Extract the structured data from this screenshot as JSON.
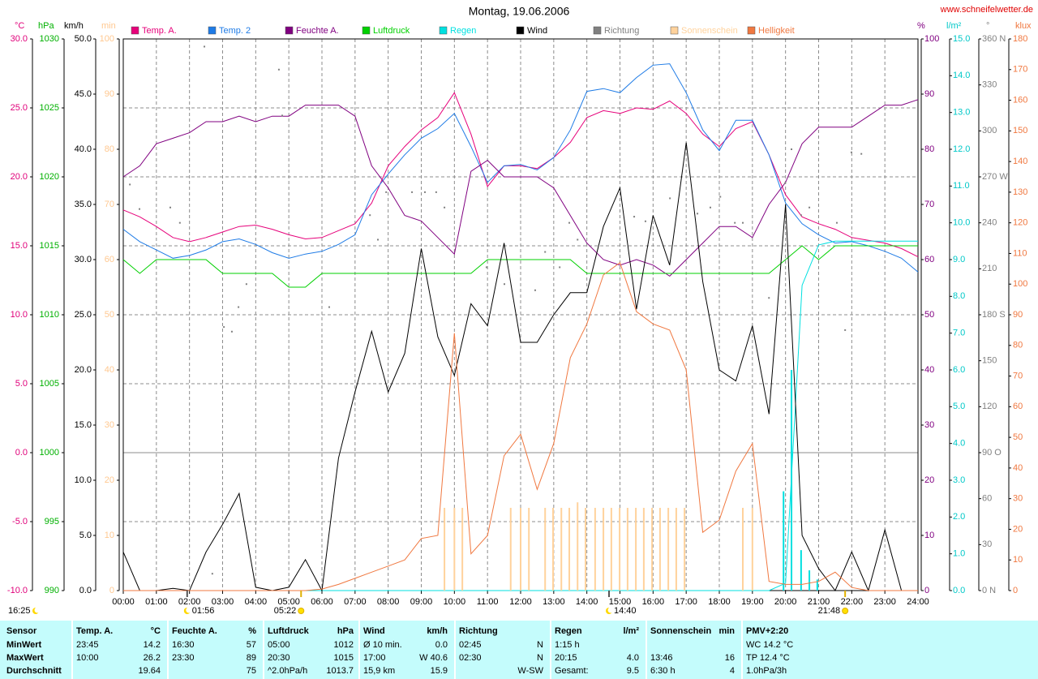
{
  "header": {
    "title": "Montag, 19.06.2006",
    "site": "www.schneifelwetter.de"
  },
  "chart_data": {
    "type": "line",
    "grid": true,
    "x": [
      0,
      0.5,
      1,
      1.5,
      2,
      2.5,
      3,
      3.5,
      4,
      4.5,
      5,
      5.5,
      6,
      6.5,
      7,
      7.5,
      8,
      8.5,
      9,
      9.5,
      10,
      10.5,
      11,
      11.5,
      12,
      12.5,
      13,
      13.5,
      14,
      14.5,
      15,
      15.5,
      16,
      16.5,
      17,
      17.5,
      18,
      18.5,
      19,
      19.5,
      20,
      20.5,
      21,
      21.5,
      22,
      22.5,
      23,
      23.5,
      24
    ],
    "xlim": [
      0,
      24
    ],
    "xticks": [
      {
        "value": 0,
        "label": "00:00"
      },
      {
        "value": 1,
        "label": "01:00"
      },
      {
        "value": 2,
        "label": "02:00"
      },
      {
        "value": 3,
        "label": "03:00"
      },
      {
        "value": 4,
        "label": "04:00"
      },
      {
        "value": 5,
        "label": "05:00"
      },
      {
        "value": 6,
        "label": "06:00"
      },
      {
        "value": 7,
        "label": "07:00"
      },
      {
        "value": 8,
        "label": "08:00"
      },
      {
        "value": 9,
        "label": "09:00"
      },
      {
        "value": 10,
        "label": "10:00"
      },
      {
        "value": 11,
        "label": "11:00"
      },
      {
        "value": 12,
        "label": "12:00"
      },
      {
        "value": 13,
        "label": "13:00"
      },
      {
        "value": 14,
        "label": "14:00"
      },
      {
        "value": 15,
        "label": "15:00"
      },
      {
        "value": 16,
        "label": "16:00"
      },
      {
        "value": 17,
        "label": "17:00"
      },
      {
        "value": 18,
        "label": "18:00"
      },
      {
        "value": 19,
        "label": "19:00"
      },
      {
        "value": 20,
        "label": "20:00"
      },
      {
        "value": 21,
        "label": "21:00"
      },
      {
        "value": 22,
        "label": "22:00"
      },
      {
        "value": 23,
        "label": "23:00"
      },
      {
        "value": 24,
        "label": "24:00"
      }
    ],
    "axes": [
      {
        "label": "°C",
        "color": "#e0007a",
        "side": "left",
        "grid": true,
        "ylim": [
          -10,
          30
        ],
        "yticks": [
          {
            "value": -10,
            "label": "-10.0"
          },
          {
            "value": -5,
            "label": "-5.0"
          },
          {
            "value": 0,
            "label": "0.0"
          },
          {
            "value": 5,
            "label": "5.0"
          },
          {
            "value": 10,
            "label": "10.0"
          },
          {
            "value": 15,
            "label": "15.0"
          },
          {
            "value": 20,
            "label": "20.0"
          },
          {
            "value": 25,
            "label": "25.0"
          },
          {
            "value": 30,
            "label": "30.0"
          }
        ]
      },
      {
        "label": "hPa",
        "color": "#00b000",
        "side": "left",
        "ylim": [
          990,
          1030
        ],
        "yticks": [
          990,
          995,
          1000,
          1005,
          1010,
          1015,
          1020,
          1025,
          1030
        ]
      },
      {
        "label": "km/h",
        "color": "#000000",
        "side": "left",
        "ylim": [
          0,
          50
        ],
        "yticks": [
          {
            "value": 0,
            "label": "0.0"
          },
          {
            "value": 5,
            "label": "5.0"
          },
          {
            "value": 10,
            "label": "10.0"
          },
          {
            "value": 15,
            "label": "15.0"
          },
          {
            "value": 20,
            "label": "20.0"
          },
          {
            "value": 25,
            "label": "25.0"
          },
          {
            "value": 30,
            "label": "30.0"
          },
          {
            "value": 35,
            "label": "35.0"
          },
          {
            "value": 40,
            "label": "40.0"
          },
          {
            "value": 45,
            "label": "45.0"
          },
          {
            "value": 50,
            "label": "50.0"
          }
        ]
      },
      {
        "label": "min",
        "color": "#ffc890",
        "side": "left",
        "ylim": [
          0,
          100
        ],
        "yticks": [
          0,
          10,
          20,
          30,
          40,
          50,
          60,
          70,
          80,
          90,
          100
        ]
      },
      {
        "label": "%",
        "color": "#800080",
        "side": "right",
        "ylim": [
          0,
          100
        ],
        "yticks": [
          0,
          10,
          20,
          30,
          40,
          50,
          60,
          70,
          80,
          90,
          100
        ]
      },
      {
        "label": "l/m²",
        "color": "#00c8c8",
        "side": "right",
        "ylim": [
          0,
          15
        ],
        "yticks": [
          {
            "value": 0,
            "label": "0.0"
          },
          {
            "value": 1,
            "label": "1.0"
          },
          {
            "value": 2,
            "label": "2.0"
          },
          {
            "value": 3,
            "label": "3.0"
          },
          {
            "value": 4,
            "label": "4.0"
          },
          {
            "value": 5,
            "label": "5.0"
          },
          {
            "value": 6,
            "label": "6.0"
          },
          {
            "value": 7,
            "label": "7.0"
          },
          {
            "value": 8,
            "label": "8.0"
          },
          {
            "value": 9,
            "label": "9.0"
          },
          {
            "value": 10,
            "label": "10.0"
          },
          {
            "value": 11,
            "label": "11.0"
          },
          {
            "value": 12,
            "label": "12.0"
          },
          {
            "value": 13,
            "label": "13.0"
          },
          {
            "value": 14,
            "label": "14.0"
          },
          {
            "value": 15,
            "label": "15.0"
          }
        ]
      },
      {
        "label": "°",
        "color": "#808080",
        "side": "right",
        "ylim": [
          0,
          360
        ],
        "yticks": [
          {
            "value": 0,
            "label": "0 N"
          },
          30,
          60,
          {
            "value": 90,
            "label": "90 O"
          },
          120,
          150,
          {
            "value": 180,
            "label": "180 S"
          },
          210,
          240,
          {
            "value": 270,
            "label": "270 W"
          },
          300,
          330,
          {
            "value": 360,
            "label": "360 N"
          }
        ]
      },
      {
        "label": "klux",
        "color": "#f07840",
        "side": "right",
        "ylim": [
          0,
          180
        ],
        "yticks": [
          0,
          10,
          20,
          30,
          40,
          50,
          60,
          70,
          80,
          90,
          100,
          110,
          120,
          130,
          140,
          150,
          160,
          170,
          180
        ]
      }
    ],
    "series": [
      {
        "name": "Temp. A.",
        "color": "#e6007a",
        "axis": "°C",
        "values": [
          17.6,
          17.1,
          16.4,
          15.6,
          15.3,
          15.6,
          16.0,
          16.4,
          16.5,
          16.2,
          15.8,
          15.5,
          15.6,
          16.1,
          16.6,
          18.1,
          20.8,
          22.2,
          23.4,
          24.3,
          26.1,
          23.1,
          19.3,
          20.8,
          20.8,
          20.6,
          21.4,
          22.5,
          24.3,
          24.8,
          24.6,
          25.0,
          24.9,
          25.5,
          24.6,
          23.1,
          22.2,
          23.5,
          24.0,
          21.6,
          18.7,
          17.1,
          16.6,
          16.2,
          15.6,
          15.4,
          15.2,
          14.8,
          14.2
        ]
      },
      {
        "name": "Temp. 2",
        "color": "#1e7be6",
        "axis": "°C",
        "values": [
          16.2,
          15.3,
          14.7,
          14.1,
          14.3,
          14.7,
          15.3,
          15.5,
          15.1,
          14.5,
          14.1,
          14.4,
          14.6,
          15.1,
          15.8,
          18.7,
          20.2,
          21.6,
          22.8,
          23.5,
          24.6,
          22.2,
          19.6,
          20.8,
          20.9,
          20.5,
          21.4,
          23.4,
          26.2,
          26.4,
          26.1,
          27.2,
          28.1,
          28.2,
          26.1,
          23.4,
          21.9,
          24.1,
          24.1,
          21.6,
          18.1,
          16.6,
          15.8,
          15.2,
          15.3,
          15.0,
          14.6,
          14.1,
          13.1
        ]
      },
      {
        "name": "Feuchte A.",
        "color": "#800080",
        "axis": "%",
        "values": [
          75,
          77,
          81,
          82,
          83,
          85,
          85,
          86,
          85,
          86,
          86,
          88,
          88,
          88,
          86,
          77,
          73,
          68,
          67,
          64,
          61,
          76,
          78,
          75,
          75,
          75,
          73,
          68,
          63,
          60,
          59,
          60,
          59,
          57,
          60,
          63,
          66,
          66,
          64,
          70,
          74,
          81,
          84,
          84,
          84,
          86,
          88,
          88,
          89
        ]
      },
      {
        "name": "Luftdruck",
        "color": "#00d000",
        "axis": "hPa",
        "values": [
          1014,
          1013,
          1014,
          1014,
          1014,
          1014,
          1013,
          1013,
          1013,
          1013,
          1012,
          1012,
          1013,
          1013,
          1013,
          1013,
          1013,
          1013,
          1013,
          1013,
          1013,
          1013,
          1014,
          1014,
          1014,
          1014,
          1014,
          1014,
          1013,
          1013,
          1013,
          1013,
          1013,
          1013,
          1013,
          1013,
          1013,
          1013,
          1013,
          1013,
          1014,
          1015,
          1014,
          1015,
          1015,
          1015,
          1015,
          1015,
          1015
        ]
      },
      {
        "name": "Regen",
        "color": "#00e0e0",
        "axis": "l/m²",
        "values": [
          0,
          0,
          0,
          0,
          0,
          0,
          0,
          0,
          0,
          0,
          0,
          0,
          0,
          0,
          0,
          0,
          0,
          0,
          0,
          0,
          0,
          0,
          0,
          0,
          0,
          0,
          0,
          0,
          0,
          0,
          0,
          0,
          0,
          0,
          0,
          0,
          0,
          0,
          0,
          0,
          0.2,
          8.3,
          9.4,
          9.5,
          9.5,
          9.5,
          9.5,
          9.5,
          9.5
        ],
        "bars": {
          "x": [
            19.94,
            20.18,
            20.47,
            20.72,
            20.96
          ],
          "values": [
            2.7,
            6.0,
            1.1,
            0.55,
            0.3
          ]
        }
      },
      {
        "name": "Wind",
        "color": "#000000",
        "axis": "km/h",
        "values": [
          3.5,
          0,
          0,
          0.2,
          0,
          3.5,
          6,
          8.8,
          0.3,
          0,
          0.3,
          2.8,
          0,
          12,
          18,
          23.5,
          18,
          21.5,
          31,
          23,
          19.5,
          26,
          24,
          31.5,
          22.5,
          22.5,
          25,
          27,
          27,
          33,
          36.5,
          25.5,
          34,
          29.5,
          40.6,
          28,
          20,
          19,
          24,
          16,
          35,
          5,
          2,
          0,
          3.5,
          0,
          5.5,
          0,
          null
        ]
      },
      {
        "name": "Richtung",
        "color": "#808080",
        "axis": "°",
        "kind": "dots",
        "x": [
          0.2,
          0.49,
          1.42,
          1.71,
          2.45,
          2.69,
          3.04,
          3.28,
          3.48,
          3.72,
          4.7,
          4.8,
          6.22,
          7.45,
          7.69,
          7.94,
          8.72,
          9.11,
          9.45,
          9.7,
          10.97,
          11.51,
          12.44,
          12.74,
          13.18,
          13.47,
          13.72,
          15.43,
          15.77,
          16.51,
          17.34,
          17.73,
          18.03,
          18.47,
          18.71,
          19.5,
          19.99,
          20.18,
          20.47,
          20.72,
          21.55,
          21.8,
          21.99,
          22.29
        ],
        "values": [
          265,
          249,
          250,
          240,
          355,
          11,
          172,
          169,
          185,
          200,
          340,
          310,
          185,
          245,
          229,
          260,
          260,
          260,
          260,
          250,
          211,
          200,
          196,
          221,
          211,
          240,
          229,
          244,
          241,
          256,
          246,
          250,
          257,
          240,
          240,
          191,
          266,
          288,
          245,
          250,
          240,
          170,
          286,
          285
        ]
      },
      {
        "name": "Sonnenschein",
        "color": "#ffd29c",
        "axis": "min",
        "kind": "bars",
        "x": [
          9.7,
          10.0,
          10.24,
          11.7,
          12.0,
          12.25,
          12.74,
          12.98,
          13.23,
          13.47,
          13.72,
          13.96,
          14.25,
          14.5,
          14.74,
          14.99,
          15.23,
          15.48,
          15.72,
          15.97,
          16.21,
          16.46,
          16.7,
          16.95,
          18.71,
          19.0
        ],
        "values": [
          15,
          15,
          15,
          15,
          15,
          15,
          15,
          15,
          15,
          15,
          16,
          15,
          15,
          15,
          15,
          15,
          15,
          15,
          15,
          15,
          15,
          15,
          15,
          15,
          15,
          15
        ]
      },
      {
        "name": "Helligkeit",
        "color": "#f07840",
        "axis": "klux",
        "values": [
          0,
          0,
          0,
          0,
          0,
          0,
          0,
          0,
          0,
          0,
          0,
          0,
          0.5,
          2,
          4,
          6,
          8,
          10,
          17,
          18,
          84,
          12,
          18,
          44,
          51,
          33,
          48,
          76,
          87,
          103,
          107,
          91,
          87,
          85,
          72,
          19,
          23,
          39,
          48,
          3,
          2,
          2,
          3,
          6,
          1,
          0,
          0,
          0,
          0
        ]
      }
    ],
    "annotations": [
      {
        "x": 1.93,
        "label": "01:56",
        "icon": "moon"
      },
      {
        "x": 5.37,
        "label": "05:22",
        "icon": "sun"
      },
      {
        "x": 14.67,
        "label": "14:40",
        "icon": "moon"
      },
      {
        "x": 21.8,
        "label": "21:48",
        "icon": "sun"
      }
    ],
    "previous": {
      "label": "16:25",
      "icon": "moon"
    }
  },
  "table": {
    "header": [
      {
        "l": "Sensor"
      },
      {
        "l": "Temp. A.",
        "r": "°C"
      },
      {
        "l": "Feuchte A.",
        "r": "%"
      },
      {
        "l": "Luftdruck",
        "r": "hPa"
      },
      {
        "l": "Wind",
        "r": "km/h"
      },
      {
        "l": "Richtung"
      },
      {
        "l": "Regen",
        "r": "l/m²"
      },
      {
        "l": "Sonnenschein",
        "r": "min"
      },
      {
        "l": "PMV+2:20"
      }
    ],
    "rows": [
      [
        {
          "l": "MinWert"
        },
        {
          "l": "23:45",
          "r": "14.2"
        },
        {
          "l": "16:30",
          "r": "57"
        },
        {
          "l": "05:00",
          "r": "1012"
        },
        {
          "l": "Ø 10 min.",
          "r": "0.0"
        },
        {
          "l": "02:45",
          "r": "N"
        },
        {
          "l": "1:15 h"
        },
        {},
        {
          "l": "WC 14.2 °C"
        }
      ],
      [
        {
          "l": "MaxWert"
        },
        {
          "l": "10:00",
          "r": "26.2"
        },
        {
          "l": "23:30",
          "r": "89"
        },
        {
          "l": "20:30",
          "r": "1015"
        },
        {
          "l": "17:00",
          "r": "W 40.6"
        },
        {
          "l": "02:30",
          "r": "N"
        },
        {
          "l": "20:15",
          "r": "4.0"
        },
        {
          "l": "13:46",
          "r": "16"
        },
        {
          "l": "TP 12.4 °C"
        }
      ],
      [
        {
          "l": "Durchschnitt"
        },
        {
          "r": "19.64"
        },
        {
          "r": "75"
        },
        {
          "l": "^2.0hPa/h",
          "r": "1013.7"
        },
        {
          "l": "15,9 km",
          "r": "15.9"
        },
        {
          "r": "W-SW"
        },
        {
          "l": "Gesamt:",
          "r": "9.5"
        },
        {
          "l": "6:30 h",
          "r": "4"
        },
        {
          "l": "1.0hPa/3h"
        }
      ]
    ]
  }
}
